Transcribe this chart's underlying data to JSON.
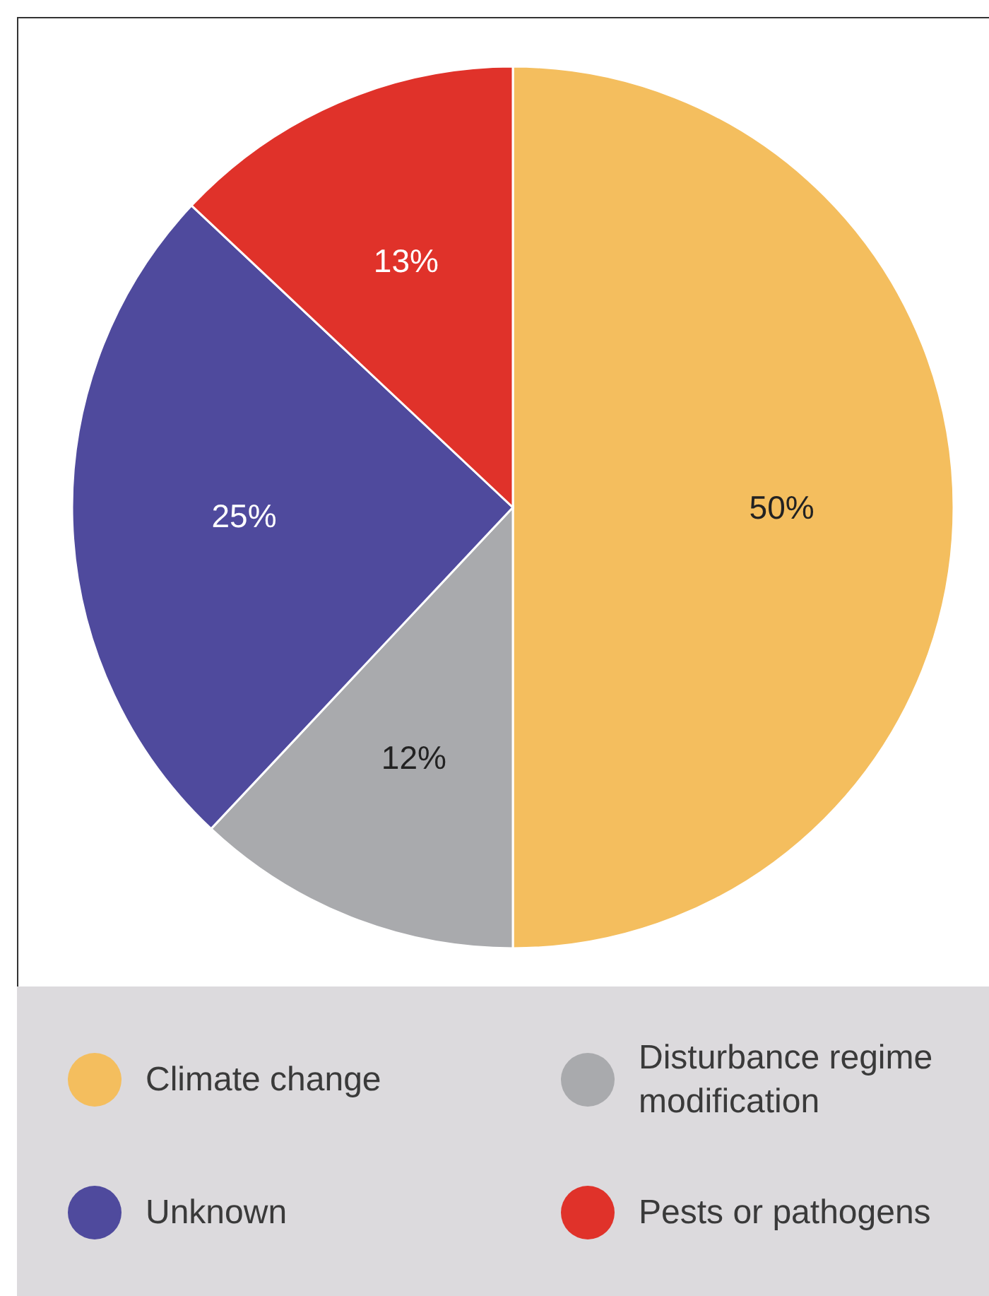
{
  "chart_data": {
    "type": "pie",
    "categories": [
      "Climate change",
      "Disturbance regime modification",
      "Unknown",
      "Pests or pathogens"
    ],
    "values": [
      50,
      12,
      25,
      13
    ],
    "colors": [
      "#f4be5e",
      "#a9aaad",
      "#4f4a9d",
      "#e0322a"
    ],
    "value_labels": [
      "50%",
      "12%",
      "25%",
      "13%"
    ],
    "legend": "bottom"
  }
}
